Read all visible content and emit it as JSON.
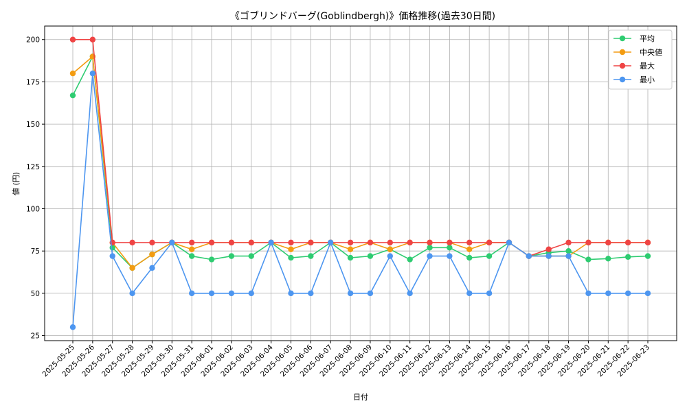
{
  "chart_data": {
    "type": "line",
    "title": "《ゴブリンドバーグ(Goblindbergh)》価格推移(過去30日間)",
    "xlabel": "日付",
    "ylabel": "値 (円)",
    "ylim": [
      22,
      208
    ],
    "yticks": [
      25,
      50,
      75,
      100,
      125,
      150,
      175,
      200
    ],
    "grid": true,
    "legend_position": "top-right",
    "categories": [
      "2025-05-25",
      "2025-05-26",
      "2025-05-27",
      "2025-05-28",
      "2025-05-29",
      "2025-05-30",
      "2025-05-31",
      "2025-06-01",
      "2025-06-02",
      "2025-06-03",
      "2025-06-04",
      "2025-06-05",
      "2025-06-06",
      "2025-06-07",
      "2025-06-08",
      "2025-06-09",
      "2025-06-10",
      "2025-06-11",
      "2025-06-12",
      "2025-06-13",
      "2025-06-14",
      "2025-06-15",
      "2025-06-16",
      "2025-06-17",
      "2025-06-18",
      "2025-06-19",
      "2025-06-20",
      "2025-06-21",
      "2025-06-22",
      "2025-06-23"
    ],
    "series": [
      {
        "name": "平均",
        "color": "#2ecc71",
        "values": [
          167,
          190,
          77,
          65,
          73,
          80,
          72,
          70,
          72,
          72,
          80,
          71,
          72,
          80,
          71,
          72,
          76,
          70,
          77,
          77,
          71,
          72,
          80,
          72,
          74,
          75,
          70,
          70.5,
          71.5,
          72
        ]
      },
      {
        "name": "中央値",
        "color": "#f39c12",
        "values": [
          180,
          190,
          80,
          65,
          73,
          80,
          76,
          80,
          80,
          80,
          80,
          76,
          80,
          80,
          76,
          80,
          76,
          80,
          80,
          80,
          76,
          80,
          80,
          72,
          72,
          72,
          80,
          80,
          80,
          80
        ]
      },
      {
        "name": "最大",
        "color": "#ef4444",
        "values": [
          200,
          200,
          80,
          80,
          80,
          80,
          80,
          80,
          80,
          80,
          80,
          80,
          80,
          80,
          80,
          80,
          80,
          80,
          80,
          80,
          80,
          80,
          80,
          72,
          76,
          80,
          80,
          80,
          80,
          80
        ]
      },
      {
        "name": "最小",
        "color": "#4d96f0",
        "values": [
          30,
          180,
          72,
          50,
          65,
          80,
          50,
          50,
          50,
          50,
          80,
          50,
          50,
          80,
          50,
          50,
          72,
          50,
          72,
          72,
          50,
          50,
          80,
          72,
          72,
          72,
          50,
          50,
          50,
          50
        ]
      }
    ]
  }
}
